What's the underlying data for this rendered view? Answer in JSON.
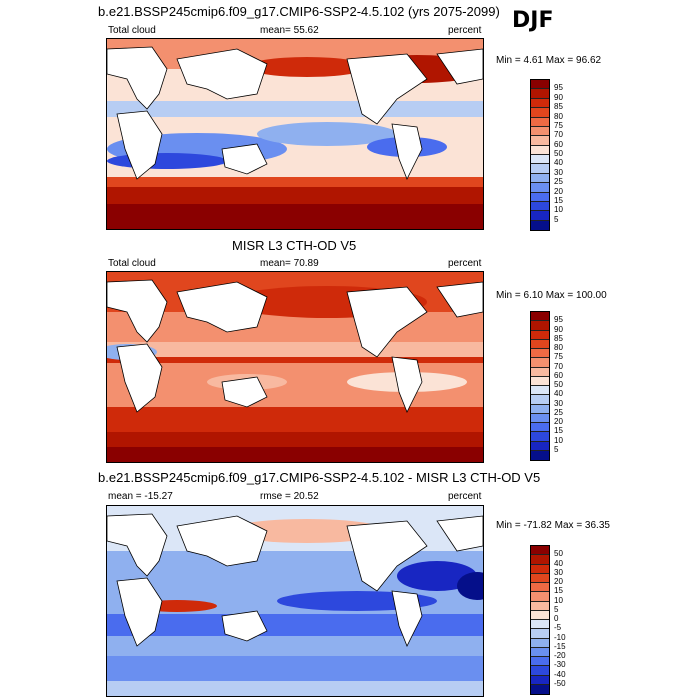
{
  "season": "DJF",
  "panels": [
    {
      "title": "b.e21.BSSP245cmip6.f09_g17.CMIP6-SSP2-4.5.102 (yrs 2075-2099)",
      "left_label": "Total cloud",
      "center_label": "mean=  55.62",
      "right_label": "percent",
      "minmax": "Min =   4.61 Max =  96.62",
      "ticks": [
        "95",
        "90",
        "85",
        "80",
        "75",
        "70",
        "60",
        "50",
        "40",
        "30",
        "25",
        "20",
        "15",
        "10",
        "5"
      ],
      "colors": [
        "#8a0000",
        "#b01500",
        "#cf2a0a",
        "#e0461e",
        "#ee6a44",
        "#f3906f",
        "#f8b9a0",
        "#fbe3d6",
        "#dbe6f7",
        "#b7cdf3",
        "#8fb0ef",
        "#6a8ff0",
        "#4a6cee",
        "#2d48dd",
        "#1826c2",
        "#050f8a"
      ]
    },
    {
      "title": "MISR L3 CTH-OD V5",
      "left_label": "Total cloud",
      "center_label": "mean=  70.89",
      "right_label": "percent",
      "minmax": "Min =   6.10 Max = 100.00",
      "ticks": [
        "95",
        "90",
        "85",
        "80",
        "75",
        "70",
        "60",
        "50",
        "40",
        "30",
        "25",
        "20",
        "15",
        "10",
        "5"
      ],
      "colors": [
        "#8a0000",
        "#b01500",
        "#cf2a0a",
        "#e0461e",
        "#ee6a44",
        "#f3906f",
        "#f8b9a0",
        "#fbe3d6",
        "#dbe6f7",
        "#b7cdf3",
        "#8fb0ef",
        "#6a8ff0",
        "#4a6cee",
        "#2d48dd",
        "#1826c2",
        "#050f8a"
      ]
    },
    {
      "title": "b.e21.BSSP245cmip6.f09_g17.CMIP6-SSP2-4.5.102 - MISR L3 CTH-OD V5",
      "left_label": "mean = -15.27",
      "center_label": "rmse =  20.52",
      "right_label": "percent",
      "minmax": "Min = -71.82 Max =  36.35",
      "ticks": [
        "50",
        "40",
        "30",
        "20",
        "15",
        "10",
        "5",
        "0",
        "-5",
        "-10",
        "-15",
        "-20",
        "-30",
        "-40",
        "-50"
      ],
      "colors": [
        "#8a0000",
        "#b01500",
        "#cf2a0a",
        "#e0461e",
        "#ee6a44",
        "#f3906f",
        "#f8b9a0",
        "#fbe3d6",
        "#dbe6f7",
        "#b7cdf3",
        "#8fb0ef",
        "#6a8ff0",
        "#4a6cee",
        "#2d48dd",
        "#1826c2",
        "#050f8a"
      ]
    }
  ]
}
